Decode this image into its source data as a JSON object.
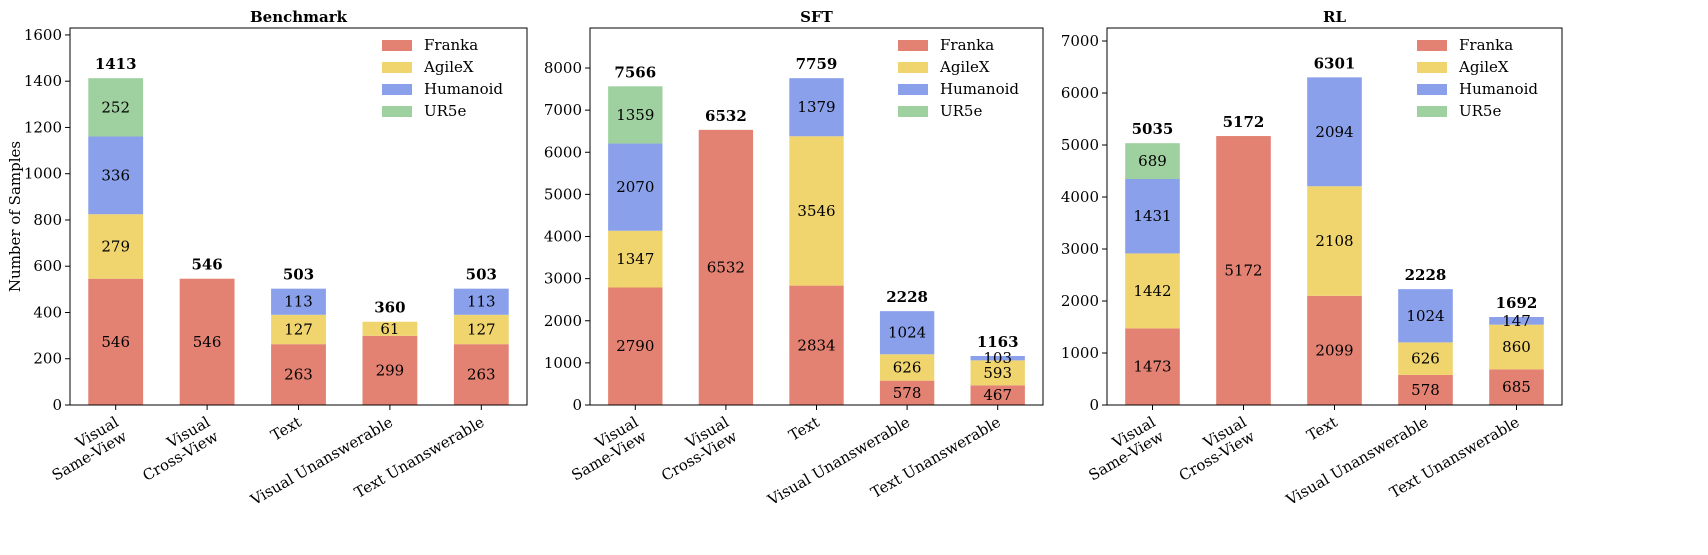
{
  "chart_data": [
    {
      "type": "stacked_bar",
      "title": "Benchmark",
      "y_label": "Number of Samples",
      "categories": [
        "Visual\nSame-View",
        "Visual\nCross-View",
        "Text",
        "Visual Unanswerable",
        "Text Unanswerable"
      ],
      "series": [
        {
          "name": "Franka",
          "color": "#e38272",
          "values": [
            546,
            546,
            263,
            299,
            263
          ]
        },
        {
          "name": "AgileX",
          "color": "#f0d46e",
          "values": [
            279,
            null,
            127,
            61,
            127
          ]
        },
        {
          "name": "Humanoid",
          "color": "#8aa0ea",
          "values": [
            336,
            null,
            113,
            null,
            113
          ]
        },
        {
          "name": "UR5e",
          "color": "#9fd0a0",
          "values": [
            252,
            null,
            null,
            null,
            null
          ]
        }
      ],
      "totals": [
        1413,
        546,
        503,
        360,
        503
      ],
      "ylim": [
        0,
        1630
      ],
      "yticks": [
        0,
        200,
        400,
        600,
        800,
        1000,
        1200,
        1400,
        1600
      ],
      "legend": "upper right"
    },
    {
      "type": "stacked_bar",
      "title": "SFT",
      "categories": [
        "Visual\nSame-View",
        "Visual\nCross-View",
        "Text",
        "Visual Unanswerable",
        "Text Unanswerable"
      ],
      "series": [
        {
          "name": "Franka",
          "color": "#e38272",
          "values": [
            2790,
            6532,
            2834,
            578,
            467
          ]
        },
        {
          "name": "AgileX",
          "color": "#f0d46e",
          "values": [
            1347,
            null,
            3546,
            626,
            593
          ]
        },
        {
          "name": "Humanoid",
          "color": "#8aa0ea",
          "values": [
            2070,
            null,
            1379,
            1024,
            103
          ]
        },
        {
          "name": "UR5e",
          "color": "#9fd0a0",
          "values": [
            1359,
            null,
            null,
            null,
            null
          ]
        }
      ],
      "totals": [
        7566,
        6532,
        7759,
        2228,
        1163
      ],
      "ylim": [
        0,
        8950
      ],
      "yticks": [
        0,
        1000,
        2000,
        3000,
        4000,
        5000,
        6000,
        7000,
        8000
      ],
      "legend": "upper right"
    },
    {
      "type": "stacked_bar",
      "title": "RL",
      "categories": [
        "Visual\nSame-View",
        "Visual\nCross-View",
        "Text",
        "Visual Unanswerable",
        "Text Unanswerable"
      ],
      "series": [
        {
          "name": "Franka",
          "color": "#e38272",
          "values": [
            1473,
            5172,
            2099,
            578,
            685
          ]
        },
        {
          "name": "AgileX",
          "color": "#f0d46e",
          "values": [
            1442,
            null,
            2108,
            626,
            860
          ]
        },
        {
          "name": "Humanoid",
          "color": "#8aa0ea",
          "values": [
            1431,
            null,
            2094,
            1024,
            147
          ]
        },
        {
          "name": "UR5e",
          "color": "#9fd0a0",
          "values": [
            689,
            null,
            null,
            null,
            null
          ]
        }
      ],
      "totals": [
        5035,
        5172,
        6301,
        2228,
        1692
      ],
      "ylim": [
        0,
        7250
      ],
      "yticks": [
        0,
        1000,
        2000,
        3000,
        4000,
        5000,
        6000,
        7000
      ],
      "legend": "upper right"
    }
  ]
}
